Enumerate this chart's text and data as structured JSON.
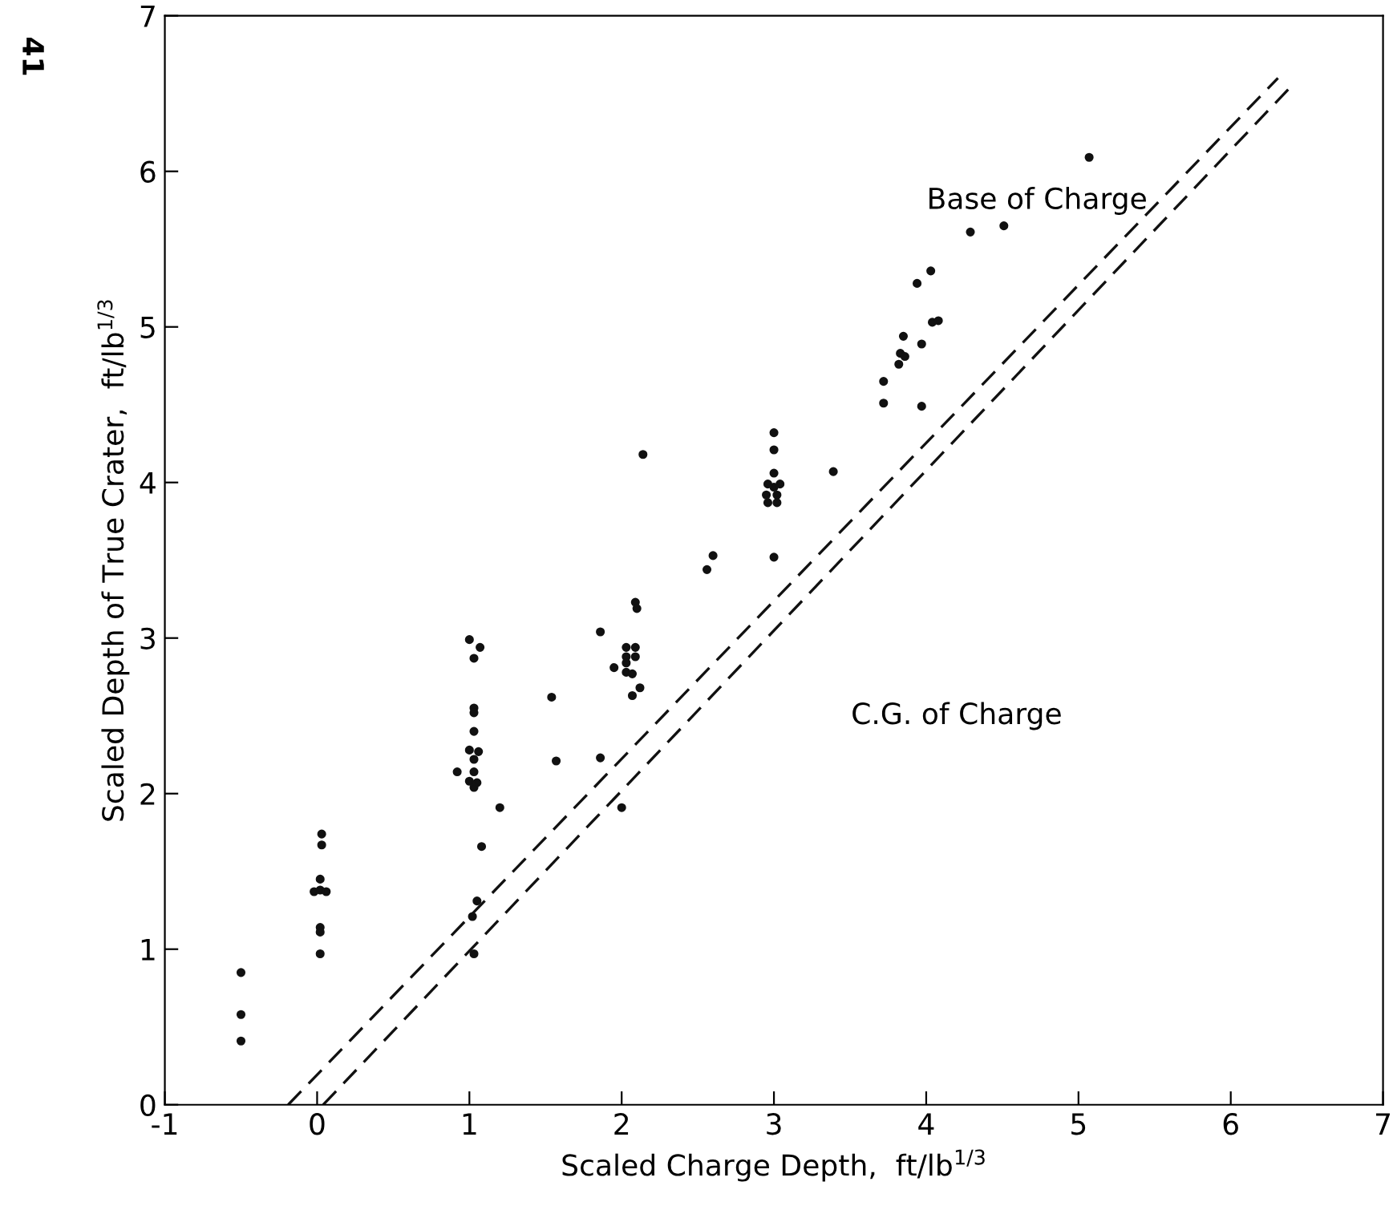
{
  "chart_data": {
    "type": "scatter",
    "xlabel": "Scaled Charge Depth,  ft/lb$^{1/3}$",
    "ylabel": "Scaled Depth of True Crater,  ft/lb$^{1/3}$",
    "xlim": [
      -1,
      7
    ],
    "ylim": [
      0,
      7
    ],
    "xticks": [
      -1,
      0,
      1,
      2,
      3,
      4,
      5,
      6,
      7
    ],
    "yticks": [
      0,
      1,
      2,
      3,
      4,
      5,
      6,
      7
    ],
    "grid": false,
    "legend": false,
    "marker": "circle",
    "series": [
      {
        "color": "#111111",
        "x": [
          -0.5,
          -0.5,
          -0.5,
          0.03,
          0.03,
          0.02,
          0.02,
          -0.02,
          0.06,
          0.02,
          0.02,
          0.02,
          1.05,
          1.02,
          1.03,
          1.08,
          1.2,
          1.0,
          1.07,
          1.03,
          1.03,
          1.03,
          1.03,
          1.0,
          1.06,
          1.03,
          0.92,
          1.03,
          1.0,
          1.05,
          1.03,
          1.54,
          1.57,
          1.86,
          1.86,
          2.0,
          2.03,
          2.09,
          2.03,
          2.09,
          1.95,
          2.03,
          2.03,
          2.07,
          2.12,
          2.07,
          2.09,
          2.1,
          2.14,
          2.56,
          2.6,
          3.0,
          3.0,
          3.0,
          2.96,
          3.04,
          3.0,
          2.95,
          3.02,
          2.96,
          3.02,
          3.0,
          3.39,
          3.72,
          3.72,
          3.97,
          5.07,
          4.29,
          4.51,
          4.03,
          3.94,
          4.04,
          4.08,
          3.85,
          3.83,
          3.86,
          3.82,
          3.97
        ],
        "values": [
          0.85,
          0.58,
          0.41,
          1.74,
          1.67,
          1.45,
          1.38,
          1.37,
          1.37,
          1.14,
          1.11,
          0.97,
          1.31,
          1.21,
          0.97,
          1.66,
          1.91,
          2.99,
          2.94,
          2.87,
          2.55,
          2.52,
          2.4,
          2.28,
          2.27,
          2.22,
          2.14,
          2.14,
          2.08,
          2.07,
          2.04,
          2.62,
          2.21,
          3.04,
          2.23,
          1.91,
          2.94,
          2.94,
          2.88,
          2.88,
          2.81,
          2.84,
          2.78,
          2.77,
          2.68,
          2.63,
          3.23,
          3.19,
          4.18,
          3.44,
          3.53,
          4.32,
          4.21,
          4.06,
          3.99,
          3.99,
          3.97,
          3.92,
          3.92,
          3.87,
          3.87,
          3.52,
          4.07,
          4.65,
          4.51,
          4.49,
          6.09,
          5.61,
          5.65,
          5.36,
          5.28,
          5.03,
          5.04,
          4.94,
          4.83,
          4.81,
          4.76,
          4.89
        ]
      },
      {
        "type": "line",
        "color": "#111111",
        "line_style": "dashed",
        "marker": "none",
        "x": [
          -0.19,
          6.31
        ],
        "values": [
          0,
          6.6
        ]
      },
      {
        "type": "line",
        "color": "#111111",
        "line_style": "dashed",
        "marker": "none",
        "x": [
          0.04,
          6.41
        ],
        "values": [
          0,
          6.56
        ]
      }
    ],
    "annotations": [
      "Base of Charge",
      "C.G. of Charge",
      "41"
    ]
  }
}
